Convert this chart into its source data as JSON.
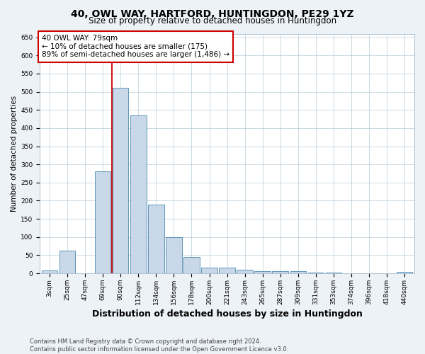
{
  "title": "40, OWL WAY, HARTFORD, HUNTINGDON, PE29 1YZ",
  "subtitle": "Size of property relative to detached houses in Huntingdon",
  "xlabel": "Distribution of detached houses by size in Huntingdon",
  "ylabel": "Number of detached properties",
  "categories": [
    "3sqm",
    "25sqm",
    "47sqm",
    "69sqm",
    "90sqm",
    "112sqm",
    "134sqm",
    "156sqm",
    "178sqm",
    "200sqm",
    "221sqm",
    "243sqm",
    "265sqm",
    "287sqm",
    "309sqm",
    "331sqm",
    "353sqm",
    "374sqm",
    "396sqm",
    "418sqm",
    "440sqm"
  ],
  "values": [
    8,
    63,
    0,
    280,
    510,
    435,
    190,
    100,
    45,
    15,
    15,
    10,
    5,
    5,
    5,
    2,
    2,
    1,
    0,
    0,
    4
  ],
  "bar_color": "#c8d8e8",
  "bar_edge_color": "#4a8ab0",
  "vline_x_idx": 3,
  "vline_color": "#cc0000",
  "annotation_text": "40 OWL WAY: 79sqm\n← 10% of detached houses are smaller (175)\n89% of semi-detached houses are larger (1,486) →",
  "annotation_box_color": "#ffffff",
  "annotation_box_edge": "#cc0000",
  "ylim": [
    0,
    660
  ],
  "yticks": [
    0,
    50,
    100,
    150,
    200,
    250,
    300,
    350,
    400,
    450,
    500,
    550,
    600,
    650
  ],
  "footer_line1": "Contains HM Land Registry data © Crown copyright and database right 2024.",
  "footer_line2": "Contains public sector information licensed under the Open Government Licence v3.0.",
  "bg_color": "#edf2f7",
  "plot_bg_color": "#ffffff",
  "grid_color": "#b8ccd8",
  "title_fontsize": 10,
  "subtitle_fontsize": 8.5,
  "tick_fontsize": 6.5,
  "ylabel_fontsize": 7.5,
  "xlabel_fontsize": 9,
  "footer_fontsize": 6,
  "annotation_fontsize": 7.5
}
